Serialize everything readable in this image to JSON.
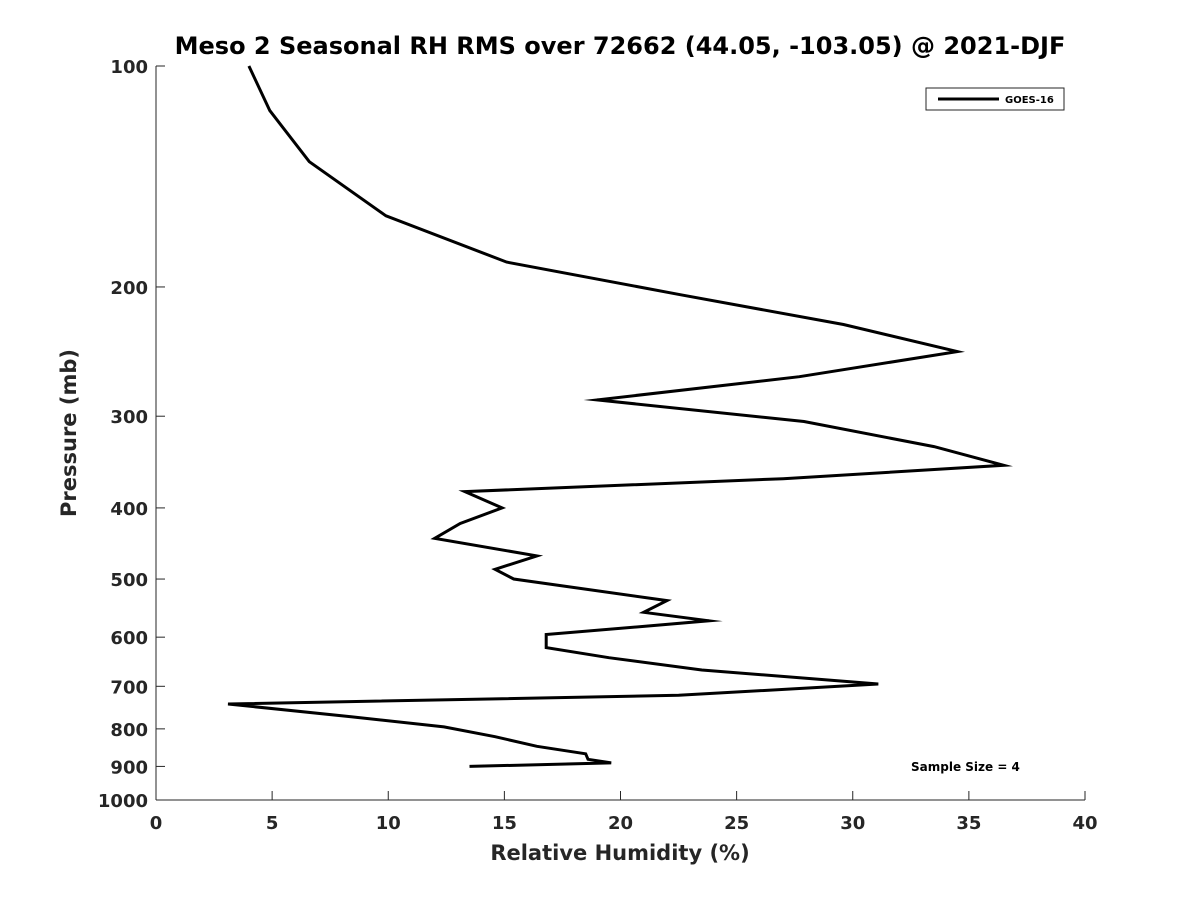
{
  "chart_data": {
    "type": "line",
    "title": "Meso 2 Seasonal RH RMS over 72662 (44.05, -103.05) @ 2021-DJF",
    "xlabel": "Relative Humidity (%)",
    "ylabel": "Pressure (mb)",
    "xlim": [
      0,
      40
    ],
    "ylim": [
      100,
      1000
    ],
    "y_scale": "log",
    "y_reversed": true,
    "x_ticks": [
      "0",
      "5",
      "10",
      "15",
      "20",
      "25",
      "30",
      "35",
      "40"
    ],
    "y_ticks": [
      "100",
      "200",
      "300",
      "400",
      "500",
      "600",
      "700",
      "800",
      "900",
      "1000"
    ],
    "grid": false,
    "legend_position": "top-right",
    "annotation": "Sample Size = 4",
    "series": [
      {
        "name": "GOES-16",
        "color": "#000000",
        "x": [
          4.0,
          4.9,
          6.6,
          9.9,
          15.1,
          22.6,
          29.6,
          34.5,
          27.7,
          19.0,
          27.9,
          33.5,
          36.5,
          27.0,
          13.3,
          14.9,
          13.1,
          12.0,
          16.4,
          14.6,
          15.4,
          22.0,
          21.0,
          23.8,
          21.0,
          16.8,
          16.8,
          19.5,
          23.5,
          31.1,
          22.5,
          3.1,
          8.4,
          12.4,
          14.6,
          16.4,
          18.5,
          18.6,
          19.6,
          13.5
        ],
        "y": [
          100,
          115,
          135,
          160,
          185,
          205,
          225,
          245,
          265,
          285,
          305,
          330,
          350,
          365,
          380,
          400,
          420,
          440,
          465,
          485,
          500,
          535,
          555,
          570,
          580,
          595,
          620,
          640,
          665,
          695,
          720,
          740,
          770,
          795,
          820,
          845,
          865,
          880,
          890,
          900
        ]
      }
    ]
  }
}
